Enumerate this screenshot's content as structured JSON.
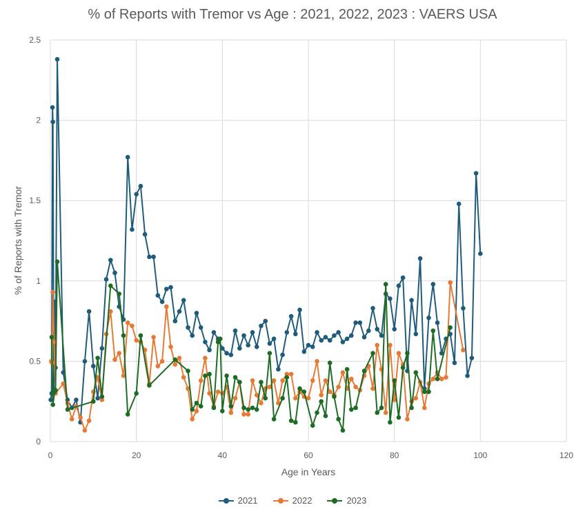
{
  "chart_data": {
    "type": "line",
    "title": "% of Reports with Tremor vs Age : 2021, 2022, 2023 : VAERS USA",
    "xlabel": "Age in Years",
    "ylabel": "% of Reports with Tremor",
    "xlim": [
      0,
      120
    ],
    "ylim": [
      0,
      2.5
    ],
    "x_ticks": [
      "0",
      "20",
      "40",
      "60",
      "80",
      "100",
      "120"
    ],
    "y_ticks": [
      "0",
      "0.5",
      "1",
      "1.5",
      "2",
      "2.5"
    ],
    "grid": true,
    "legend_position": "bottom",
    "series": [
      {
        "name": "2021",
        "color": "#1f5b7a",
        "points": [
          [
            0.1,
            0.26
          ],
          [
            0.3,
            0.3
          ],
          [
            0.5,
            2.08
          ],
          [
            0.6,
            1.99
          ],
          [
            0.8,
            0.33
          ],
          [
            1,
            0.87
          ],
          [
            1.2,
            0.46
          ],
          [
            1.6,
            2.38
          ],
          [
            3,
            0.43
          ],
          [
            4,
            0.26
          ],
          [
            5,
            0.21
          ],
          [
            6,
            0.26
          ],
          [
            7,
            0.12
          ],
          [
            8,
            0.5
          ],
          [
            9,
            0.81
          ],
          [
            10,
            0.47
          ],
          [
            11,
            0.27
          ],
          [
            12,
            0.58
          ],
          [
            13,
            1.01
          ],
          [
            14,
            1.13
          ],
          [
            15,
            1.05
          ],
          [
            16,
            0.84
          ],
          [
            17,
            0.76
          ],
          [
            18,
            1.77
          ],
          [
            19,
            1.32
          ],
          [
            20,
            1.54
          ],
          [
            21,
            1.59
          ],
          [
            22,
            1.29
          ],
          [
            23,
            1.15
          ],
          [
            24,
            1.15
          ],
          [
            25,
            0.91
          ],
          [
            26,
            0.87
          ],
          [
            27,
            0.95
          ],
          [
            28,
            0.96
          ],
          [
            29,
            0.75
          ],
          [
            30,
            0.81
          ],
          [
            31,
            0.88
          ],
          [
            32,
            0.71
          ],
          [
            33,
            0.66
          ],
          [
            34,
            0.8
          ],
          [
            35,
            0.71
          ],
          [
            36,
            0.62
          ],
          [
            37,
            0.57
          ],
          [
            38,
            0.68
          ],
          [
            39,
            0.64
          ],
          [
            40,
            0.58
          ],
          [
            41,
            0.55
          ],
          [
            42,
            0.54
          ],
          [
            43,
            0.69
          ],
          [
            44,
            0.58
          ],
          [
            45,
            0.66
          ],
          [
            46,
            0.6
          ],
          [
            47,
            0.68
          ],
          [
            48,
            0.59
          ],
          [
            49,
            0.72
          ],
          [
            50,
            0.75
          ],
          [
            51,
            0.61
          ],
          [
            52,
            0.64
          ],
          [
            53,
            0.45
          ],
          [
            54,
            0.54
          ],
          [
            55,
            0.68
          ],
          [
            56,
            0.78
          ],
          [
            57,
            0.67
          ],
          [
            58,
            0.82
          ],
          [
            59,
            0.56
          ],
          [
            60,
            0.6
          ],
          [
            61,
            0.59
          ],
          [
            62,
            0.68
          ],
          [
            63,
            0.63
          ],
          [
            64,
            0.65
          ],
          [
            65,
            0.63
          ],
          [
            66,
            0.66
          ],
          [
            67,
            0.68
          ],
          [
            68,
            0.62
          ],
          [
            69,
            0.64
          ],
          [
            70,
            0.66
          ],
          [
            71,
            0.74
          ],
          [
            72,
            0.74
          ],
          [
            73,
            0.65
          ],
          [
            74,
            0.69
          ],
          [
            75,
            0.83
          ],
          [
            76,
            0.7
          ],
          [
            77,
            0.66
          ],
          [
            78,
            0.92
          ],
          [
            79,
            0.89
          ],
          [
            80,
            0.7
          ],
          [
            81,
            0.97
          ],
          [
            82,
            1.02
          ],
          [
            83,
            0.44
          ],
          [
            84,
            0.88
          ],
          [
            85,
            0.67
          ],
          [
            86,
            1.14
          ],
          [
            87,
            0.33
          ],
          [
            88,
            0.77
          ],
          [
            89,
            0.98
          ],
          [
            90,
            0.74
          ],
          [
            91,
            0.55
          ],
          [
            92,
            0.64
          ],
          [
            93,
            0.67
          ],
          [
            94,
            0.49
          ],
          [
            95,
            1.48
          ],
          [
            96,
            0.83
          ],
          [
            97,
            0.41
          ],
          [
            98,
            0.52
          ],
          [
            99,
            1.67
          ],
          [
            100,
            1.17
          ]
        ]
      },
      {
        "name": "2022",
        "color": "#e67a35",
        "points": [
          [
            0.2,
            0.5
          ],
          [
            0.4,
            0.49
          ],
          [
            0.6,
            0.93
          ],
          [
            0.9,
            0.62
          ],
          [
            1.2,
            0.3
          ],
          [
            3,
            0.36
          ],
          [
            4,
            0.24
          ],
          [
            5,
            0.14
          ],
          [
            6,
            0.22
          ],
          [
            7,
            0.15
          ],
          [
            8,
            0.07
          ],
          [
            9,
            0.13
          ],
          [
            10,
            0.31
          ],
          [
            11,
            0.4
          ],
          [
            12,
            0.26
          ],
          [
            13,
            0.67
          ],
          [
            14,
            0.81
          ],
          [
            15,
            0.51
          ],
          [
            16,
            0.55
          ],
          [
            17,
            0.41
          ],
          [
            18,
            0.74
          ],
          [
            19,
            0.72
          ],
          [
            20,
            0.63
          ],
          [
            21,
            0.62
          ],
          [
            22,
            0.57
          ],
          [
            23,
            0.36
          ],
          [
            24,
            0.65
          ],
          [
            25,
            0.47
          ],
          [
            26,
            0.5
          ],
          [
            27,
            0.84
          ],
          [
            28,
            0.59
          ],
          [
            29,
            0.48
          ],
          [
            30,
            0.52
          ],
          [
            31,
            0.4
          ],
          [
            32,
            0.33
          ],
          [
            33,
            0.14
          ],
          [
            34,
            0.19
          ],
          [
            35,
            0.38
          ],
          [
            36,
            0.52
          ],
          [
            37,
            0.3
          ],
          [
            38,
            0.22
          ],
          [
            39,
            0.31
          ],
          [
            40,
            0.3
          ],
          [
            41,
            0.34
          ],
          [
            42,
            0.18
          ],
          [
            43,
            0.27
          ],
          [
            44,
            0.37
          ],
          [
            45,
            0.17
          ],
          [
            46,
            0.17
          ],
          [
            47,
            0.38
          ],
          [
            48,
            0.29
          ],
          [
            49,
            0.24
          ],
          [
            50,
            0.33
          ],
          [
            51,
            0.34
          ],
          [
            52,
            0.38
          ],
          [
            53,
            0.24
          ],
          [
            54,
            0.38
          ],
          [
            55,
            0.42
          ],
          [
            56,
            0.42
          ],
          [
            57,
            0.27
          ],
          [
            58,
            0.31
          ],
          [
            59,
            0.28
          ],
          [
            60,
            0.27
          ],
          [
            61,
            0.38
          ],
          [
            62,
            0.5
          ],
          [
            63,
            0.29
          ],
          [
            64,
            0.38
          ],
          [
            65,
            0.31
          ],
          [
            66,
            0.29
          ],
          [
            67,
            0.34
          ],
          [
            68,
            0.43
          ],
          [
            69,
            0.33
          ],
          [
            70,
            0.39
          ],
          [
            71,
            0.34
          ],
          [
            72,
            0.32
          ],
          [
            73,
            0.41
          ],
          [
            74,
            0.47
          ],
          [
            75,
            0.33
          ],
          [
            76,
            0.6
          ],
          [
            77,
            0.45
          ],
          [
            78,
            0.18
          ],
          [
            79,
            0.6
          ],
          [
            80,
            0.26
          ],
          [
            81,
            0.55
          ],
          [
            82,
            0.48
          ],
          [
            83,
            0.14
          ],
          [
            84,
            0.25
          ],
          [
            85,
            0.27
          ],
          [
            86,
            0.37
          ],
          [
            87,
            0.21
          ],
          [
            88,
            0.36
          ],
          [
            89,
            0.39
          ],
          [
            90,
            0.43
          ],
          [
            91,
            0.39
          ],
          [
            92,
            0.4
          ],
          [
            93,
            0.99
          ],
          [
            96,
            0.57
          ]
        ]
      },
      {
        "name": "2023",
        "color": "#1e6b24",
        "points": [
          [
            0.3,
            0.65
          ],
          [
            0.6,
            0.23
          ],
          [
            1,
            0.31
          ],
          [
            1.2,
            0.32
          ],
          [
            1.6,
            1.12
          ],
          [
            4,
            0.2
          ],
          [
            10,
            0.25
          ],
          [
            11,
            0.52
          ],
          [
            12,
            0.28
          ],
          [
            14,
            0.97
          ],
          [
            16,
            0.92
          ],
          [
            17,
            0.66
          ],
          [
            18,
            0.17
          ],
          [
            20,
            0.3
          ],
          [
            21,
            0.66
          ],
          [
            23,
            0.35
          ],
          [
            29,
            0.51
          ],
          [
            32,
            0.44
          ],
          [
            33,
            0.2
          ],
          [
            34,
            0.24
          ],
          [
            35,
            0.22
          ],
          [
            36,
            0.41
          ],
          [
            37,
            0.42
          ],
          [
            38,
            0.21
          ],
          [
            39,
            0.62
          ],
          [
            39.5,
            0.64
          ],
          [
            40,
            0.19
          ],
          [
            41,
            0.41
          ],
          [
            42,
            0.22
          ],
          [
            43,
            0.4
          ],
          [
            44,
            0.37
          ],
          [
            45,
            0.21
          ],
          [
            46,
            0.2
          ],
          [
            47,
            0.21
          ],
          [
            48,
            0.2
          ],
          [
            49,
            0.37
          ],
          [
            50,
            0.27
          ],
          [
            51,
            0.55
          ],
          [
            52,
            0.14
          ],
          [
            54,
            0.27
          ],
          [
            55,
            0.4
          ],
          [
            56,
            0.13
          ],
          [
            57,
            0.12
          ],
          [
            58,
            0.33
          ],
          [
            59,
            0.31
          ],
          [
            61,
            0.1
          ],
          [
            62,
            0.18
          ],
          [
            63,
            0.25
          ],
          [
            64,
            0.16
          ],
          [
            65,
            0.49
          ],
          [
            66,
            0.28
          ],
          [
            67,
            0.14
          ],
          [
            68,
            0.07
          ],
          [
            69,
            0.45
          ],
          [
            70,
            0.2
          ],
          [
            71,
            0.21
          ],
          [
            73,
            0.44
          ],
          [
            75,
            0.55
          ],
          [
            76,
            0.18
          ],
          [
            77,
            0.21
          ],
          [
            78,
            0.98
          ],
          [
            79,
            0.12
          ],
          [
            80,
            0.38
          ],
          [
            81,
            0.15
          ],
          [
            82,
            0.46
          ],
          [
            83,
            0.55
          ],
          [
            84,
            0.21
          ],
          [
            85,
            0.43
          ],
          [
            87,
            0.31
          ],
          [
            88,
            0.31
          ],
          [
            89,
            0.69
          ],
          [
            90,
            0.39
          ],
          [
            93,
            0.71
          ]
        ]
      }
    ]
  }
}
